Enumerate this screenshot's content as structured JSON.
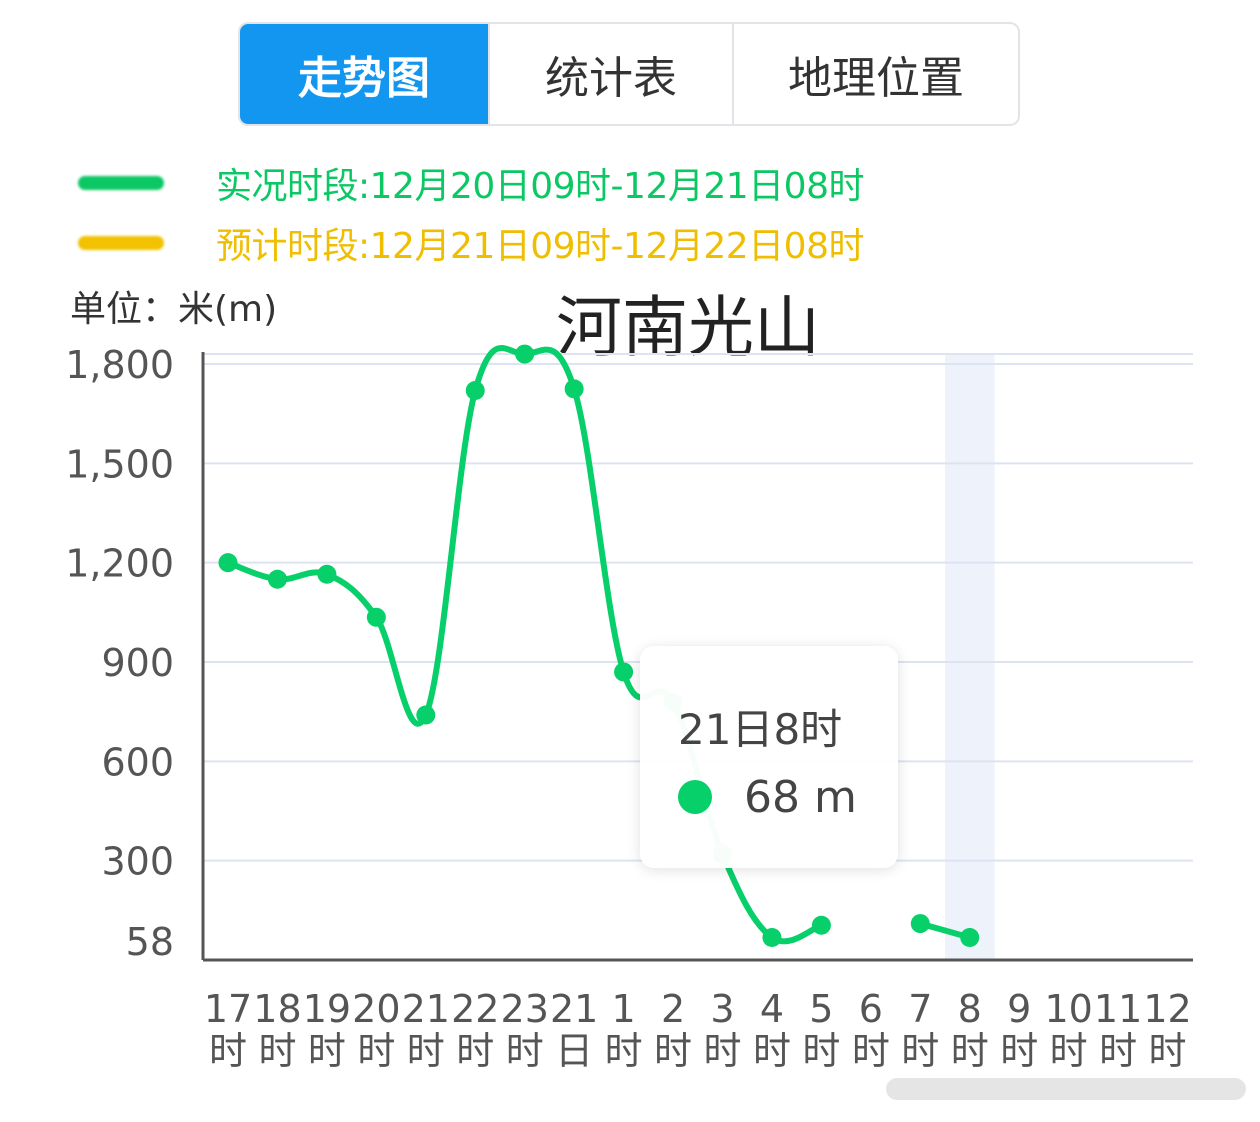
{
  "tabs": [
    {
      "label": "走势图",
      "active": true
    },
    {
      "label": "统计表",
      "active": false
    },
    {
      "label": "地理位置",
      "active": false
    }
  ],
  "legend": [
    {
      "text": "实况时段:12月20日09时-12月21日08时",
      "color": "#0cc864"
    },
    {
      "text": "预计时段:12月21日09时-12月22日08时",
      "color": "#f2c200"
    }
  ],
  "unit_label": "单位：米(m)",
  "tooltip": {
    "title": "21日8时",
    "value": "68 m"
  },
  "colors": {
    "series": "#07cf6a",
    "grid": "#dde3f0",
    "axis": "#555555",
    "highlight_band": "#eef2fb"
  },
  "chart_data": {
    "type": "line",
    "title": "河南光山",
    "ylabel": "单位：米(m)",
    "categories": [
      [
        "17",
        "时"
      ],
      [
        "18",
        "时"
      ],
      [
        "19",
        "时"
      ],
      [
        "20",
        "时"
      ],
      [
        "21",
        "时"
      ],
      [
        "22",
        "时"
      ],
      [
        "23",
        "时"
      ],
      [
        "21",
        "日"
      ],
      [
        "1",
        "时"
      ],
      [
        "2",
        "时"
      ],
      [
        "3",
        "时"
      ],
      [
        "4",
        "时"
      ],
      [
        "5",
        "时"
      ],
      [
        "6",
        "时"
      ],
      [
        "7",
        "时"
      ],
      [
        "8",
        "时"
      ],
      [
        "9",
        "时"
      ],
      [
        "10",
        "时"
      ],
      [
        "11",
        "时"
      ],
      [
        "12",
        "时"
      ]
    ],
    "y_ticks": [
      {
        "value": 58,
        "label": "58"
      },
      {
        "value": 300,
        "label": "300"
      },
      {
        "value": 600,
        "label": "600"
      },
      {
        "value": 900,
        "label": "900"
      },
      {
        "value": 1200,
        "label": "1,200"
      },
      {
        "value": 1500,
        "label": "1,500"
      },
      {
        "value": 1800,
        "label": "1,800"
      }
    ],
    "ylim": [
      0,
      1800
    ],
    "grid": true,
    "highlighted_category_index": 15,
    "series": [
      {
        "values": [
          1200,
          1150,
          1165,
          1035,
          740,
          1720,
          1830,
          1725,
          870,
          780,
          320,
          68,
          105,
          null,
          110,
          68,
          null,
          null,
          null,
          null
        ]
      }
    ]
  }
}
